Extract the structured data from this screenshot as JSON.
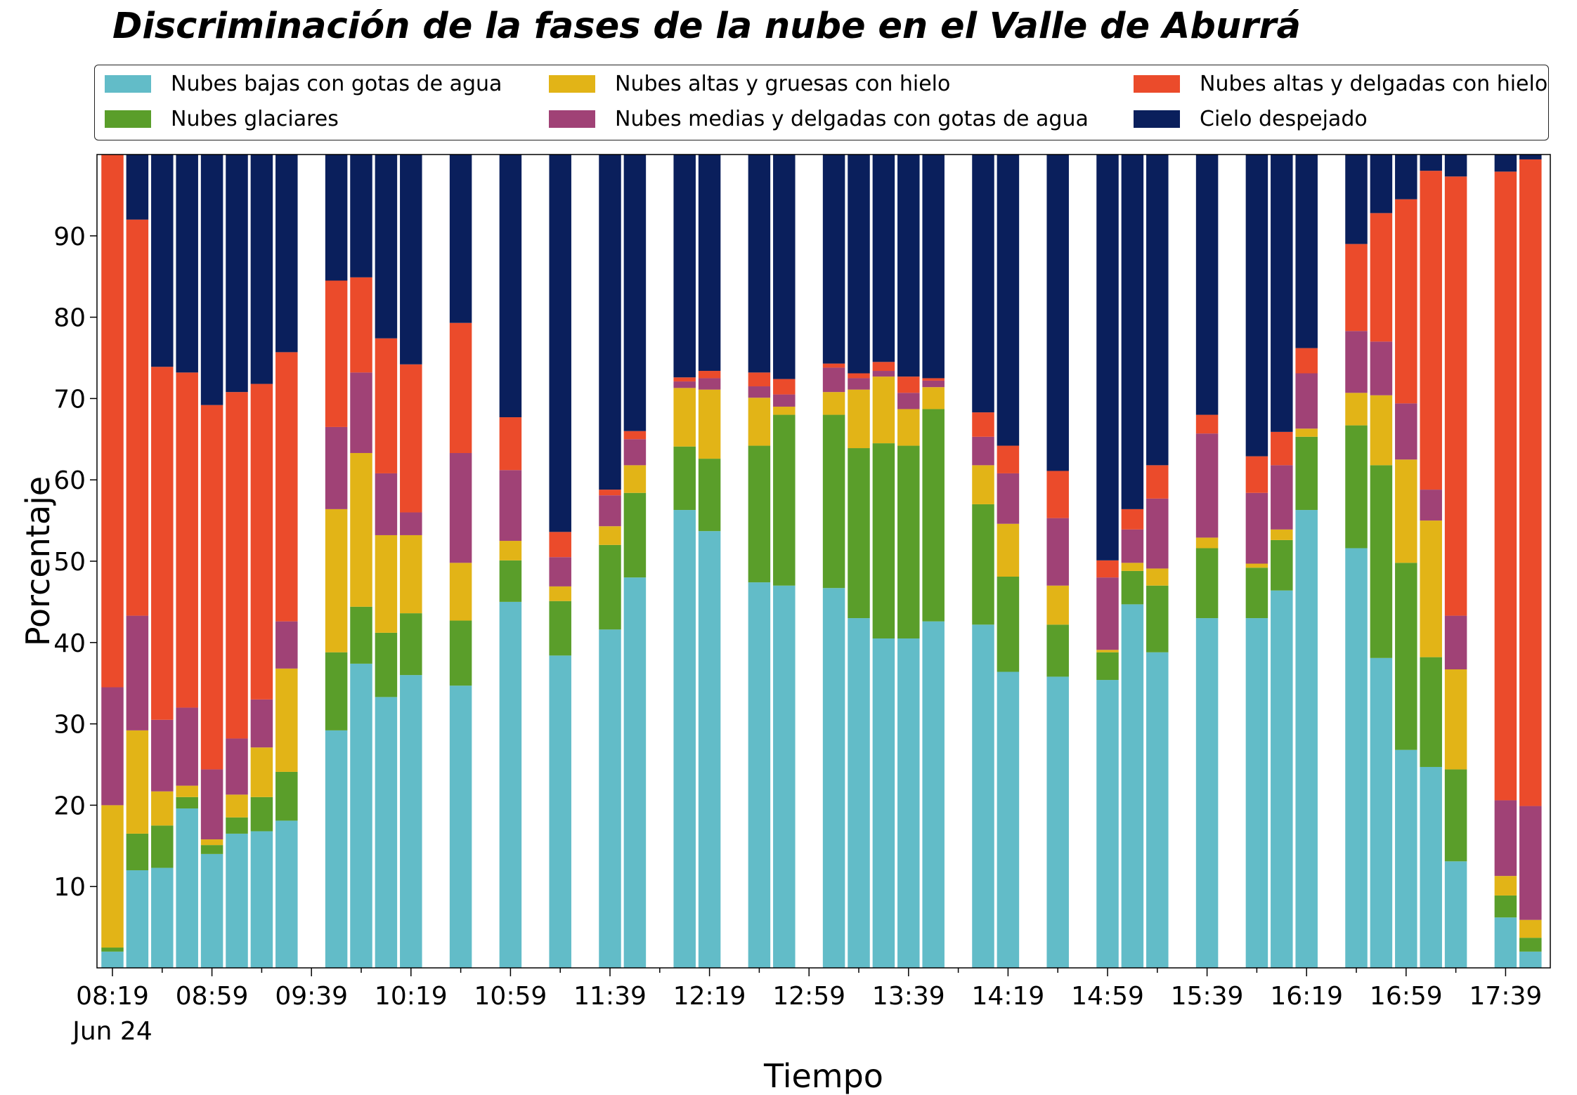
{
  "chart_data": {
    "type": "bar",
    "stacked": true,
    "title": "Discriminación de la fases de la nube en el Valle de Aburrá",
    "xlabel": "Tiempo",
    "ylabel": "Porcentaje",
    "ylim": [
      0,
      100
    ],
    "yticks": [
      10,
      20,
      30,
      40,
      50,
      60,
      70,
      80,
      90
    ],
    "x_slots": 59,
    "x_tick_labels": [
      "08:19",
      "08:59",
      "09:39",
      "10:19",
      "10:59",
      "11:39",
      "12:19",
      "12:59",
      "13:39",
      "14:19",
      "14:59",
      "15:39",
      "16:19",
      "16:59",
      "17:39"
    ],
    "x_tick_sublabel": "Jun 24",
    "legend_position": "top",
    "grid": false,
    "series": [
      {
        "name": "Nubes bajas con gotas de agua",
        "color": "#62BCC8"
      },
      {
        "name": "Nubes glaciares",
        "color": "#5A9E2A"
      },
      {
        "name": "Nubes altas y gruesas con hielo",
        "color": "#E2B417"
      },
      {
        "name": "Nubes medias y delgadas con gotas de agua",
        "color": "#A04276"
      },
      {
        "name": "Nubes altas y delgadas con hielo",
        "color": "#EB4B2B"
      },
      {
        "name": "Cielo despejado",
        "color": "#0A1F5C"
      }
    ],
    "bars": [
      {
        "slot": 0,
        "values": [
          2.0,
          0.5,
          17.5,
          14.5,
          65.5,
          0
        ]
      },
      {
        "slot": 1,
        "values": [
          12.0,
          4.5,
          12.7,
          14.1,
          48.7,
          8.0
        ]
      },
      {
        "slot": 2,
        "values": [
          12.3,
          5.2,
          4.2,
          8.8,
          43.4,
          26.1
        ]
      },
      {
        "slot": 3,
        "values": [
          19.6,
          1.4,
          1.4,
          9.6,
          41.2,
          26.8
        ]
      },
      {
        "slot": 4,
        "values": [
          14.0,
          1.1,
          0.7,
          8.6,
          44.8,
          30.8
        ]
      },
      {
        "slot": 5,
        "values": [
          16.5,
          2.0,
          2.8,
          6.9,
          42.6,
          29.2
        ]
      },
      {
        "slot": 6,
        "values": [
          16.8,
          4.2,
          6.1,
          5.9,
          38.8,
          28.2
        ]
      },
      {
        "slot": 7,
        "values": [
          18.1,
          6.0,
          12.7,
          5.8,
          33.1,
          24.3
        ]
      },
      {
        "slot": 9,
        "values": [
          29.2,
          9.6,
          17.6,
          10.1,
          18.0,
          15.5
        ]
      },
      {
        "slot": 10,
        "values": [
          37.4,
          7.0,
          18.9,
          9.9,
          11.7,
          15.1
        ]
      },
      {
        "slot": 11,
        "values": [
          33.3,
          7.9,
          12.0,
          7.6,
          16.6,
          22.6
        ]
      },
      {
        "slot": 12,
        "values": [
          36.0,
          7.6,
          9.6,
          2.8,
          18.2,
          25.8
        ]
      },
      {
        "slot": 14,
        "values": [
          34.7,
          8.0,
          7.1,
          13.5,
          16.0,
          20.7
        ]
      },
      {
        "slot": 16,
        "values": [
          45.0,
          5.1,
          2.4,
          8.7,
          6.5,
          32.3
        ]
      },
      {
        "slot": 18,
        "values": [
          38.4,
          6.7,
          1.8,
          3.6,
          3.1,
          46.4
        ]
      },
      {
        "slot": 20,
        "values": [
          41.6,
          10.4,
          2.3,
          3.8,
          0.7,
          41.2
        ]
      },
      {
        "slot": 21,
        "values": [
          48.0,
          10.4,
          3.4,
          3.2,
          1.0,
          34.0
        ]
      },
      {
        "slot": 23,
        "values": [
          56.3,
          7.8,
          7.2,
          0.8,
          0.5,
          27.4
        ]
      },
      {
        "slot": 24,
        "values": [
          53.7,
          8.9,
          8.5,
          1.4,
          0.9,
          26.6
        ]
      },
      {
        "slot": 26,
        "values": [
          47.4,
          16.8,
          5.9,
          1.4,
          1.7,
          26.8
        ]
      },
      {
        "slot": 27,
        "values": [
          47.0,
          21.0,
          1.0,
          1.5,
          1.9,
          27.6
        ]
      },
      {
        "slot": 29,
        "values": [
          46.7,
          21.3,
          2.8,
          3.0,
          0.5,
          25.7
        ]
      },
      {
        "slot": 30,
        "values": [
          43.0,
          20.9,
          7.2,
          1.4,
          0.6,
          26.9
        ]
      },
      {
        "slot": 31,
        "values": [
          40.5,
          24.0,
          8.2,
          0.7,
          1.1,
          25.5
        ]
      },
      {
        "slot": 32,
        "values": [
          40.5,
          23.7,
          4.5,
          2.0,
          2.0,
          27.3
        ]
      },
      {
        "slot": 33,
        "values": [
          42.6,
          26.1,
          2.7,
          0.8,
          0.3,
          27.5
        ]
      },
      {
        "slot": 35,
        "values": [
          42.2,
          14.8,
          4.8,
          3.5,
          3.0,
          31.7
        ]
      },
      {
        "slot": 36,
        "values": [
          36.4,
          11.7,
          6.5,
          6.2,
          3.4,
          35.8
        ]
      },
      {
        "slot": 38,
        "values": [
          35.8,
          6.4,
          4.8,
          8.3,
          5.8,
          38.9
        ]
      },
      {
        "slot": 40,
        "values": [
          35.4,
          3.4,
          0.3,
          8.9,
          2.1,
          49.9
        ]
      },
      {
        "slot": 41,
        "values": [
          44.7,
          4.1,
          1.0,
          4.1,
          2.5,
          43.6
        ]
      },
      {
        "slot": 42,
        "values": [
          38.8,
          8.2,
          2.1,
          8.6,
          4.1,
          38.2
        ]
      },
      {
        "slot": 44,
        "values": [
          43.0,
          8.6,
          1.3,
          12.8,
          2.3,
          32.0
        ]
      },
      {
        "slot": 46,
        "values": [
          43.0,
          6.2,
          0.5,
          8.7,
          4.5,
          37.1
        ]
      },
      {
        "slot": 47,
        "values": [
          46.4,
          6.2,
          1.3,
          7.9,
          4.1,
          34.1
        ]
      },
      {
        "slot": 48,
        "values": [
          56.3,
          9.0,
          1.0,
          6.8,
          3.1,
          23.8
        ]
      },
      {
        "slot": 50,
        "values": [
          51.6,
          15.1,
          4.0,
          7.6,
          10.7,
          11.0
        ]
      },
      {
        "slot": 51,
        "values": [
          38.1,
          23.7,
          8.6,
          6.6,
          15.8,
          7.2
        ]
      },
      {
        "slot": 52,
        "values": [
          26.8,
          23.0,
          12.7,
          6.9,
          25.1,
          5.5
        ]
      },
      {
        "slot": 53,
        "values": [
          24.7,
          13.5,
          16.8,
          3.8,
          39.2,
          2.0
        ]
      },
      {
        "slot": 54,
        "values": [
          13.1,
          11.3,
          12.3,
          6.6,
          54.0,
          2.7
        ]
      },
      {
        "slot": 56,
        "values": [
          6.2,
          2.7,
          2.4,
          9.3,
          77.3,
          2.1
        ]
      },
      {
        "slot": 57,
        "values": [
          2.0,
          1.7,
          2.2,
          14.0,
          79.5,
          0.6
        ]
      }
    ]
  }
}
